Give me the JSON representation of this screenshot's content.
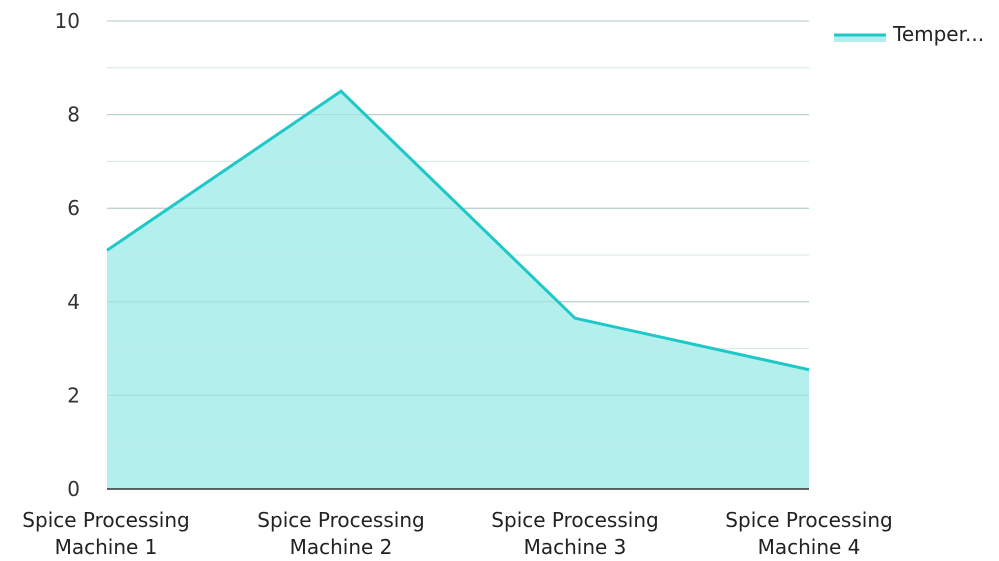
{
  "chart_data": {
    "type": "area",
    "categories": [
      [
        "Spice Processing",
        "Machine 1"
      ],
      [
        "Spice Processing",
        "Machine 2"
      ],
      [
        "Spice Processing",
        "Machine 3"
      ],
      [
        "Spice Processing",
        "Machine 4"
      ]
    ],
    "series": [
      {
        "name": "Temper...",
        "values": [
          5.1,
          8.5,
          3.65,
          2.55
        ],
        "line_color": "#1ec8c8",
        "fill_color": "#b2efed"
      }
    ],
    "y_ticks": [
      "0",
      "2",
      "4",
      "6",
      "8",
      "10"
    ],
    "ylim": [
      0,
      10
    ],
    "grid": true,
    "legend_position": "top-right",
    "title": "",
    "xlabel": "",
    "ylabel": ""
  }
}
